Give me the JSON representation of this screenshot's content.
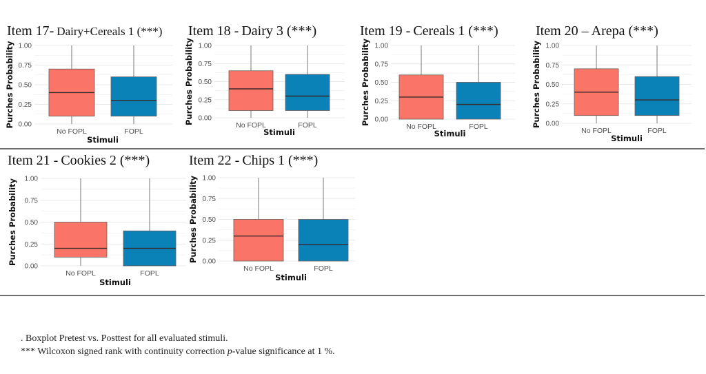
{
  "colors": {
    "no_fopl": "#fa7567",
    "fopl": "#0a81b7",
    "whisker": "#777777",
    "median": "#3a2a2a",
    "grid": "#e6e9ec"
  },
  "panels": [
    {
      "id": "item17",
      "title_main": "Item 17-",
      "title_rest": "Dairy+Cereals 1 (***)"
    },
    {
      "id": "item18",
      "title_main": "Item 18 -",
      "title_rest": "Dairy 3 (***)"
    },
    {
      "id": "item19",
      "title_main": "Item 19 -",
      "title_rest": "Cereals 1 (***)"
    },
    {
      "id": "item20",
      "title_main": "Item 20 –",
      "title_rest": "Arepa (***)"
    },
    {
      "id": "item21",
      "title_main": "Item 21 -",
      "title_rest": "Cookies 2 (***)"
    },
    {
      "id": "item22",
      "title_main": "Item 22 -",
      "title_rest": "Chips 1 (***)"
    }
  ],
  "caption": {
    "line1": ". Boxplot Pretest vs. Posttest for all evaluated stimuli.",
    "line2_prefix": "*** Wilcoxon signed rank with continuity correction ",
    "line2_italic": "p",
    "line2_suffix": "-value significance at 1 %."
  },
  "chart_data": [
    {
      "type": "box",
      "title": "Item 17- Dairy+Cereals 1 (***)",
      "xlabel": "Stimuli",
      "ylabel": "Purches Probability",
      "ylim": [
        0,
        1
      ],
      "yticks": [
        "0.00",
        "0.25",
        "0.50",
        "0.75",
        "1.00"
      ],
      "grid": true,
      "categories": [
        "No FOPL",
        "FOPL"
      ],
      "boxes": [
        {
          "category": "No FOPL",
          "min": 0.0,
          "q1": 0.1,
          "median": 0.4,
          "q3": 0.7,
          "max": 1.0
        },
        {
          "category": "FOPL",
          "min": 0.0,
          "q1": 0.1,
          "median": 0.3,
          "q3": 0.6,
          "max": 1.0
        }
      ]
    },
    {
      "type": "box",
      "title": "Item 18 - Dairy 3 (***)",
      "xlabel": "Stimuli",
      "ylabel": "Purches Probability",
      "ylim": [
        0,
        1
      ],
      "yticks": [
        "0.00",
        "0.25",
        "0.50",
        "0.75",
        "1.00"
      ],
      "grid": true,
      "categories": [
        "No FOPL",
        "FOPL"
      ],
      "boxes": [
        {
          "category": "No FOPL",
          "min": 0.0,
          "q1": 0.1,
          "median": 0.4,
          "q3": 0.65,
          "max": 1.0
        },
        {
          "category": "FOPL",
          "min": 0.0,
          "q1": 0.1,
          "median": 0.3,
          "q3": 0.6,
          "max": 1.0
        }
      ]
    },
    {
      "type": "box",
      "title": "Item 19 - Cereals 1 (***)",
      "xlabel": "Stimuli",
      "ylabel": "Purches Probability",
      "ylim": [
        0,
        1
      ],
      "yticks": [
        "0.00",
        "0.25",
        "0.50",
        "0.75",
        "1.00"
      ],
      "grid": true,
      "categories": [
        "No FOPL",
        "FOPL"
      ],
      "boxes": [
        {
          "category": "No FOPL",
          "min": 0.0,
          "q1": 0.0,
          "median": 0.3,
          "q3": 0.6,
          "max": 1.0
        },
        {
          "category": "FOPL",
          "min": 0.0,
          "q1": 0.0,
          "median": 0.2,
          "q3": 0.5,
          "max": 1.0
        }
      ]
    },
    {
      "type": "box",
      "title": "Item 20 – Arepa (***)",
      "xlabel": "Stimuli",
      "ylabel": "Purches Probability",
      "ylim": [
        0,
        1
      ],
      "yticks": [
        "0.00",
        "0.25",
        "0.50",
        "0.75",
        "1.00"
      ],
      "grid": true,
      "categories": [
        "No FOPL",
        "FOPL"
      ],
      "boxes": [
        {
          "category": "No FOPL",
          "min": 0.0,
          "q1": 0.1,
          "median": 0.4,
          "q3": 0.7,
          "max": 1.0
        },
        {
          "category": "FOPL",
          "min": 0.0,
          "q1": 0.1,
          "median": 0.3,
          "q3": 0.6,
          "max": 1.0
        }
      ]
    },
    {
      "type": "box",
      "title": "Item 21 - Cookies 2 (***)",
      "xlabel": "Stimuli",
      "ylabel": "Purches Probability",
      "ylim": [
        0,
        1
      ],
      "yticks": [
        "0.00",
        "0.25",
        "0.50",
        "0.75",
        "1.00"
      ],
      "grid": true,
      "categories": [
        "No FOPL",
        "FOPL"
      ],
      "boxes": [
        {
          "category": "No FOPL",
          "min": 0.0,
          "q1": 0.1,
          "median": 0.2,
          "q3": 0.5,
          "max": 1.0
        },
        {
          "category": "FOPL",
          "min": 0.0,
          "q1": 0.0,
          "median": 0.2,
          "q3": 0.4,
          "max": 1.0
        }
      ]
    },
    {
      "type": "box",
      "title": "Item 22 - Chips 1 (***)",
      "xlabel": "Stimuli",
      "ylabel": "Purches Probability",
      "ylim": [
        0,
        1
      ],
      "yticks": [
        "0.00",
        "0.25",
        "0.50",
        "0.75",
        "1.00"
      ],
      "grid": true,
      "categories": [
        "No FOPL",
        "FOPL"
      ],
      "boxes": [
        {
          "category": "No FOPL",
          "min": 0.0,
          "q1": 0.0,
          "median": 0.3,
          "q3": 0.5,
          "max": 1.0
        },
        {
          "category": "FOPL",
          "min": 0.0,
          "q1": 0.0,
          "median": 0.2,
          "q3": 0.5,
          "max": 1.0
        }
      ]
    }
  ]
}
